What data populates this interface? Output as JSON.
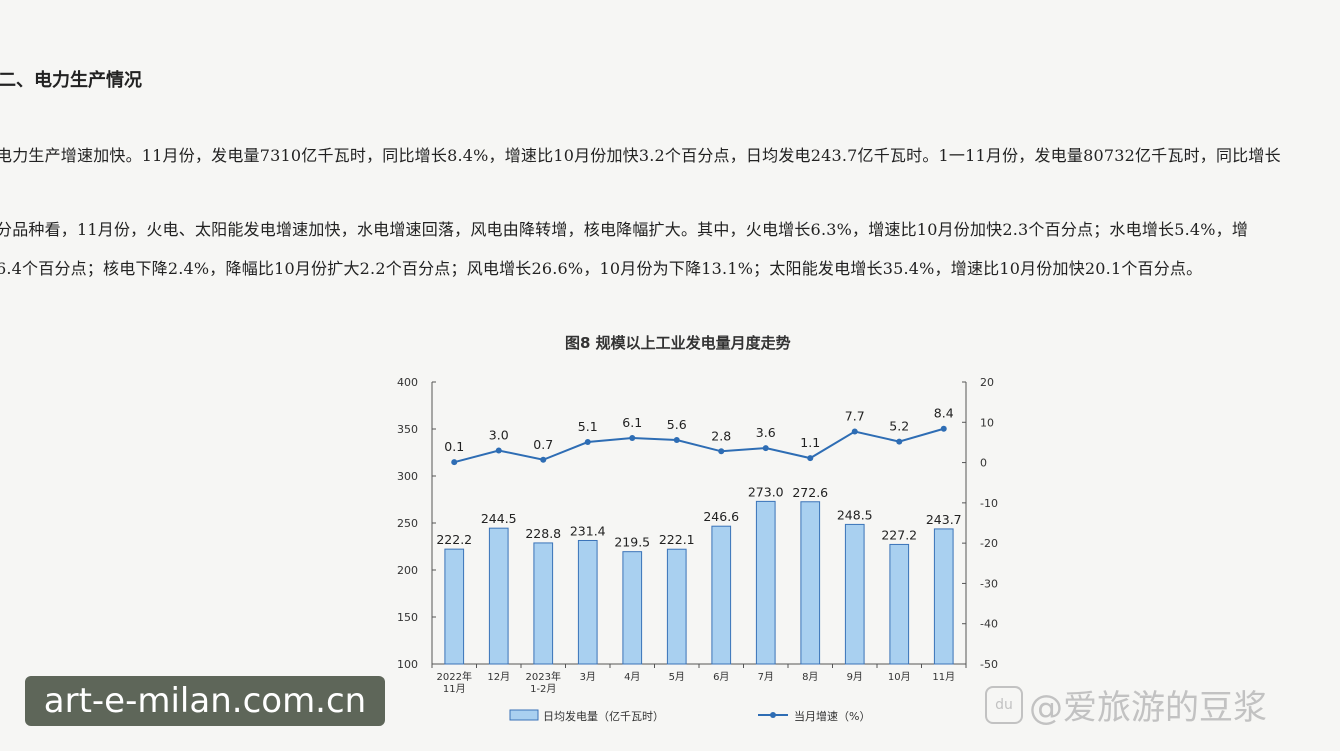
{
  "document": {
    "heading": "二、电力生产情况",
    "paragraphs": [
      "电力生产增速加快。11月份，发电量7310亿千瓦时，同比增长8.4%，增速比10月份加快3.2个百分点，日均发电243.7亿千瓦时。1一11月份，发电量80732亿千瓦时，同比增长",
      "分品种看，11月份，火电、太阳能发电增速加快，水电增速回落，风电由降转增，核电降幅扩大。其中，火电增长6.3%，增速比10月份加快2.3个百分点；水电增长5.4%，增",
      "6.4个百分点；核电下降2.4%，降幅比10月份扩大2.2个百分点；风电增长26.6%，10月份为下降13.1%；太阳能发电增长35.4%，增速比10月份加快20.1个百分点。"
    ]
  },
  "chart_title": "图8  规模以上工业发电量月度走势",
  "chart_data": {
    "type": "bar",
    "title": "图8  规模以上工业发电量月度走势",
    "categories": [
      [
        "2022年",
        "11月"
      ],
      [
        "12月"
      ],
      [
        "2023年",
        "1-2月"
      ],
      [
        "3月"
      ],
      [
        "4月"
      ],
      [
        "5月"
      ],
      [
        "6月"
      ],
      [
        "7月"
      ],
      [
        "8月"
      ],
      [
        "9月"
      ],
      [
        "10月"
      ],
      [
        "11月"
      ]
    ],
    "series": [
      {
        "name": "日均发电量（亿千瓦时）",
        "type": "bar",
        "axis": "left",
        "color": "#a9d0f0",
        "stroke": "#3a73b8",
        "values": [
          222.2,
          244.5,
          228.8,
          231.4,
          219.5,
          222.1,
          246.6,
          273.0,
          272.6,
          248.5,
          227.2,
          243.7
        ],
        "labels": [
          "222.2",
          "244.5",
          "228.8",
          "231.4",
          "219.5",
          "222.1",
          "246.6",
          "273.0",
          "272.6",
          "248.5",
          "227.2",
          "243.7"
        ]
      },
      {
        "name": "当月增速（%）",
        "type": "line",
        "axis": "right",
        "color": "#2e6db4",
        "values": [
          0.1,
          3.0,
          0.7,
          5.1,
          6.1,
          5.6,
          2.8,
          3.6,
          1.1,
          7.7,
          5.2,
          8.4
        ],
        "labels": [
          "0.1",
          "3.0",
          "0.7",
          "5.1",
          "6.1",
          "5.6",
          "2.8",
          "3.6",
          "1.1",
          "7.7",
          "5.2",
          "8.4"
        ]
      }
    ],
    "y_left": {
      "range": [
        100,
        400
      ],
      "ticks": [
        "100",
        "150",
        "200",
        "250",
        "300",
        "350",
        "400"
      ]
    },
    "y_right": {
      "range": [
        -50,
        20
      ],
      "ticks": [
        "-50",
        "-40",
        "-30",
        "-20",
        "-10",
        "0",
        "10",
        "20"
      ]
    },
    "legend_position": "bottom",
    "grid": false
  },
  "watermarks": {
    "left": "art-e-milan.com.cn",
    "right_icon": "du",
    "right": "@爱旅游的豆浆"
  }
}
